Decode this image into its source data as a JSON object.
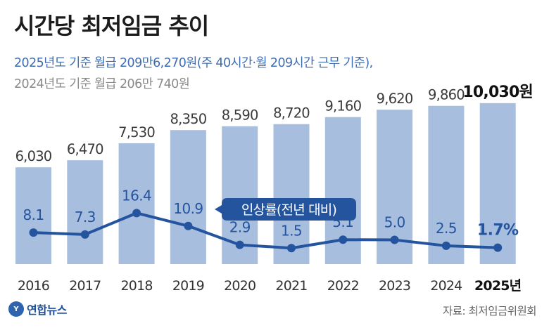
{
  "title": "시간당 최저임금 추이",
  "subtitle_line1": "2025년도 기준 월급 209만6,270원(주 40시간·월 209시간 근무 기준),",
  "subtitle_line2": "2024년도 기준 월급 206만 740원",
  "chart_data": {
    "type": "bar",
    "categories": [
      "2016",
      "2017",
      "2018",
      "2019",
      "2020",
      "2021",
      "2022",
      "2023",
      "2024",
      "2025년"
    ],
    "series": [
      {
        "values": [
          6030,
          6470,
          7530,
          8350,
          8590,
          8720,
          9160,
          9620,
          9860,
          10030
        ],
        "labels": [
          "6,030",
          "6,470",
          "7,530",
          "8,350",
          "8,590",
          "8,720",
          "9,160",
          "9,620",
          "9,860",
          "10,030원"
        ]
      },
      {
        "name": "인상률(전년 대비)",
        "type": "line",
        "values": [
          8.1,
          7.3,
          16.4,
          10.9,
          2.9,
          1.5,
          5.1,
          5.0,
          2.5,
          1.7
        ],
        "labels": [
          "8.1",
          "7.3",
          "16.4",
          "10.9",
          "2.9",
          "1.5",
          "5.1",
          "5.0",
          "2.5",
          "1.7%"
        ]
      }
    ],
    "highlight_index": 9,
    "colors": {
      "bar": "#a8bedf",
      "line": "#24549e",
      "text": "#3a3a3a"
    }
  },
  "footer": {
    "logo_mark": "Y",
    "logo_text": "연합뉴스",
    "source": "자료: 최저임금위원회"
  }
}
